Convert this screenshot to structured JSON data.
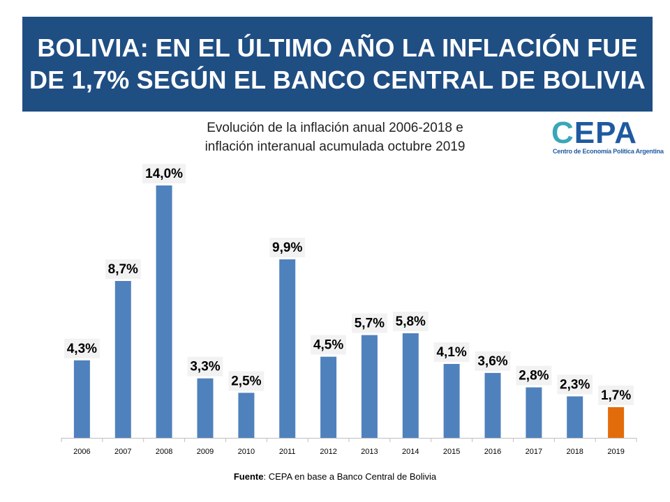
{
  "header": {
    "title_line1": "BOLIVIA: EN EL ÚLTIMO AÑO LA INFLACIÓN FUE",
    "title_line2": "DE 1,7% SEGÚN EL BANCO CENTRAL DE BOLIVIA"
  },
  "logo": {
    "letter_c": "C",
    "rest": "EPA",
    "subtitle": "Centro de Economía Política Argentina"
  },
  "source": {
    "label": "Fuente",
    "text": ": CEPA en base a Banco Central de Bolivia"
  },
  "colors": {
    "banner": "#1f4e83",
    "bar": "#4f81bd",
    "highlight_bar": "#e36c0a",
    "label_bg": "#f2f2f2"
  },
  "chart_data": {
    "type": "bar",
    "title_line1": "Evolución de la inflación anual 2006-2018 e",
    "title_line2": "inflación interanual acumulada octubre 2019",
    "categories": [
      "2006",
      "2007",
      "2008",
      "2009",
      "2010",
      "2011",
      "2012",
      "2013",
      "2014",
      "2015",
      "2016",
      "2017",
      "2018",
      "2019"
    ],
    "values": [
      4.3,
      8.7,
      14.0,
      3.3,
      2.5,
      9.9,
      4.5,
      5.7,
      5.8,
      4.1,
      3.6,
      2.8,
      2.3,
      1.7
    ],
    "data_labels": [
      "4,3%",
      "8,7%",
      "14,0%",
      "3,3%",
      "2,5%",
      "9,9%",
      "4,5%",
      "5,7%",
      "5,8%",
      "4,1%",
      "3,6%",
      "2,8%",
      "2,3%",
      "1,7%"
    ],
    "highlight_index": 13,
    "xlabel": "",
    "ylabel": "",
    "ylim": [
      0,
      14
    ]
  }
}
